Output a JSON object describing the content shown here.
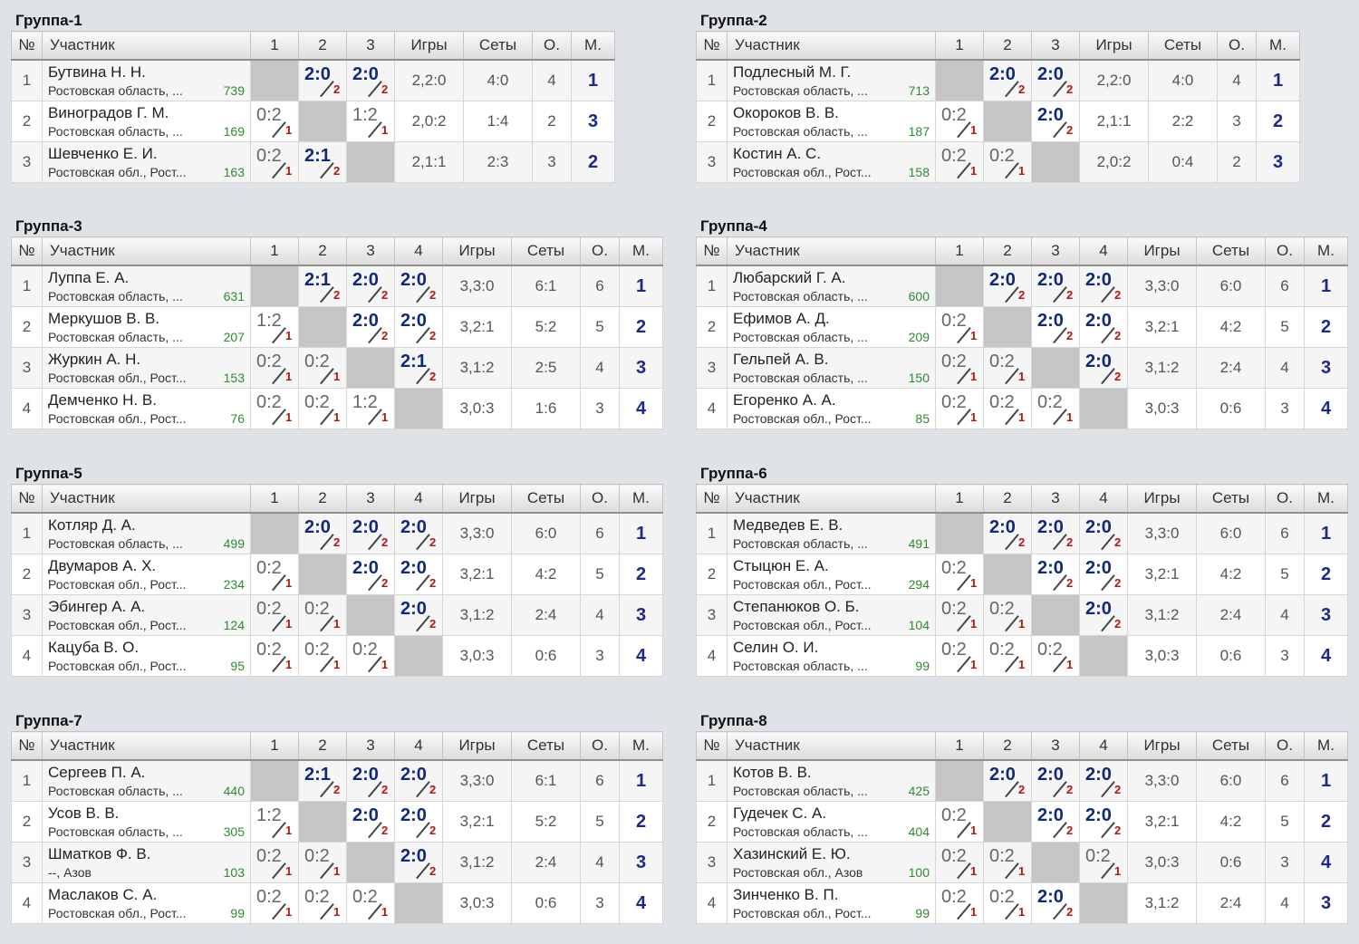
{
  "headers": {
    "num": "№",
    "participant": "Участник",
    "games": "Игры",
    "sets": "Сеты",
    "points": "О.",
    "place": "М."
  },
  "groups": [
    {
      "title": "Группа-1",
      "cols": [
        "1",
        "2",
        "3"
      ],
      "rows": [
        {
          "num": "1",
          "name": "Бутвина Н. Н.",
          "region": "Ростовская область, ...",
          "rating": "739",
          "results": [
            null,
            {
              "score": "2:0",
              "pts": "2",
              "win": true
            },
            {
              "score": "2:0",
              "pts": "2",
              "win": true
            }
          ],
          "games": "2,2:0",
          "sets": "4:0",
          "points": "4",
          "place": "1"
        },
        {
          "num": "2",
          "name": "Виноградов Г. М.",
          "region": "Ростовская область, ...",
          "rating": "169",
          "results": [
            {
              "score": "0:2",
              "pts": "1",
              "win": false
            },
            null,
            {
              "score": "1:2",
              "pts": "1",
              "win": false
            }
          ],
          "games": "2,0:2",
          "sets": "1:4",
          "points": "2",
          "place": "3"
        },
        {
          "num": "3",
          "name": "Шевченко Е. И.",
          "region": "Ростовская обл., Рост...",
          "rating": "163",
          "results": [
            {
              "score": "0:2",
              "pts": "1",
              "win": false
            },
            {
              "score": "2:1",
              "pts": "2",
              "win": true
            },
            null
          ],
          "games": "2,1:1",
          "sets": "2:3",
          "points": "3",
          "place": "2"
        }
      ]
    },
    {
      "title": "Группа-2",
      "cols": [
        "1",
        "2",
        "3"
      ],
      "rows": [
        {
          "num": "1",
          "name": "Подлесный М. Г.",
          "region": "Ростовская область, ...",
          "rating": "713",
          "results": [
            null,
            {
              "score": "2:0",
              "pts": "2",
              "win": true
            },
            {
              "score": "2:0",
              "pts": "2",
              "win": true
            }
          ],
          "games": "2,2:0",
          "sets": "4:0",
          "points": "4",
          "place": "1"
        },
        {
          "num": "2",
          "name": "Окороков В. В.",
          "region": "Ростовская область, ...",
          "rating": "187",
          "results": [
            {
              "score": "0:2",
              "pts": "1",
              "win": false
            },
            null,
            {
              "score": "2:0",
              "pts": "2",
              "win": true
            }
          ],
          "games": "2,1:1",
          "sets": "2:2",
          "points": "3",
          "place": "2"
        },
        {
          "num": "3",
          "name": "Костин А. С.",
          "region": "Ростовская обл., Рост...",
          "rating": "158",
          "results": [
            {
              "score": "0:2",
              "pts": "1",
              "win": false
            },
            {
              "score": "0:2",
              "pts": "1",
              "win": false
            },
            null
          ],
          "games": "2,0:2",
          "sets": "0:4",
          "points": "2",
          "place": "3"
        }
      ]
    },
    {
      "title": "Группа-3",
      "cols": [
        "1",
        "2",
        "3",
        "4"
      ],
      "rows": [
        {
          "num": "1",
          "name": "Луппа Е. А.",
          "region": "Ростовская область, ...",
          "rating": "631",
          "results": [
            null,
            {
              "score": "2:1",
              "pts": "2",
              "win": true
            },
            {
              "score": "2:0",
              "pts": "2",
              "win": true
            },
            {
              "score": "2:0",
              "pts": "2",
              "win": true
            }
          ],
          "games": "3,3:0",
          "sets": "6:1",
          "points": "6",
          "place": "1"
        },
        {
          "num": "2",
          "name": "Меркушов В. В.",
          "region": "Ростовская область, ...",
          "rating": "207",
          "results": [
            {
              "score": "1:2",
              "pts": "1",
              "win": false
            },
            null,
            {
              "score": "2:0",
              "pts": "2",
              "win": true
            },
            {
              "score": "2:0",
              "pts": "2",
              "win": true
            }
          ],
          "games": "3,2:1",
          "sets": "5:2",
          "points": "5",
          "place": "2"
        },
        {
          "num": "3",
          "name": "Журкин А. Н.",
          "region": "Ростовская обл., Рост...",
          "rating": "153",
          "results": [
            {
              "score": "0:2",
              "pts": "1",
              "win": false
            },
            {
              "score": "0:2",
              "pts": "1",
              "win": false
            },
            null,
            {
              "score": "2:1",
              "pts": "2",
              "win": true
            }
          ],
          "games": "3,1:2",
          "sets": "2:5",
          "points": "4",
          "place": "3"
        },
        {
          "num": "4",
          "name": "Демченко Н. В.",
          "region": "Ростовская обл., Рост...",
          "rating": "76",
          "results": [
            {
              "score": "0:2",
              "pts": "1",
              "win": false
            },
            {
              "score": "0:2",
              "pts": "1",
              "win": false
            },
            {
              "score": "1:2",
              "pts": "1",
              "win": false
            },
            null
          ],
          "games": "3,0:3",
          "sets": "1:6",
          "points": "3",
          "place": "4"
        }
      ]
    },
    {
      "title": "Группа-4",
      "cols": [
        "1",
        "2",
        "3",
        "4"
      ],
      "rows": [
        {
          "num": "1",
          "name": "Любарский Г. А.",
          "region": "Ростовская область, ...",
          "rating": "600",
          "results": [
            null,
            {
              "score": "2:0",
              "pts": "2",
              "win": true
            },
            {
              "score": "2:0",
              "pts": "2",
              "win": true
            },
            {
              "score": "2:0",
              "pts": "2",
              "win": true
            }
          ],
          "games": "3,3:0",
          "sets": "6:0",
          "points": "6",
          "place": "1"
        },
        {
          "num": "2",
          "name": "Ефимов А. Д.",
          "region": "Ростовская область, ...",
          "rating": "209",
          "results": [
            {
              "score": "0:2",
              "pts": "1",
              "win": false
            },
            null,
            {
              "score": "2:0",
              "pts": "2",
              "win": true
            },
            {
              "score": "2:0",
              "pts": "2",
              "win": true
            }
          ],
          "games": "3,2:1",
          "sets": "4:2",
          "points": "5",
          "place": "2"
        },
        {
          "num": "3",
          "name": "Гельпей А. В.",
          "region": "Ростовская область, ...",
          "rating": "150",
          "results": [
            {
              "score": "0:2",
              "pts": "1",
              "win": false
            },
            {
              "score": "0:2",
              "pts": "1",
              "win": false
            },
            null,
            {
              "score": "2:0",
              "pts": "2",
              "win": true
            }
          ],
          "games": "3,1:2",
          "sets": "2:4",
          "points": "4",
          "place": "3"
        },
        {
          "num": "4",
          "name": "Егоренко А. А.",
          "region": "Ростовская обл., Рост...",
          "rating": "85",
          "results": [
            {
              "score": "0:2",
              "pts": "1",
              "win": false
            },
            {
              "score": "0:2",
              "pts": "1",
              "win": false
            },
            {
              "score": "0:2",
              "pts": "1",
              "win": false
            },
            null
          ],
          "games": "3,0:3",
          "sets": "0:6",
          "points": "3",
          "place": "4"
        }
      ]
    },
    {
      "title": "Группа-5",
      "cols": [
        "1",
        "2",
        "3",
        "4"
      ],
      "rows": [
        {
          "num": "1",
          "name": "Котляр Д. А.",
          "region": "Ростовская область, ...",
          "rating": "499",
          "results": [
            null,
            {
              "score": "2:0",
              "pts": "2",
              "win": true
            },
            {
              "score": "2:0",
              "pts": "2",
              "win": true
            },
            {
              "score": "2:0",
              "pts": "2",
              "win": true
            }
          ],
          "games": "3,3:0",
          "sets": "6:0",
          "points": "6",
          "place": "1"
        },
        {
          "num": "2",
          "name": "Двумаров А. Х.",
          "region": "Ростовская обл., Рост...",
          "rating": "234",
          "results": [
            {
              "score": "0:2",
              "pts": "1",
              "win": false
            },
            null,
            {
              "score": "2:0",
              "pts": "2",
              "win": true
            },
            {
              "score": "2:0",
              "pts": "2",
              "win": true
            }
          ],
          "games": "3,2:1",
          "sets": "4:2",
          "points": "5",
          "place": "2"
        },
        {
          "num": "3",
          "name": "Эбингер А. А.",
          "region": "Ростовская обл., Рост...",
          "rating": "124",
          "results": [
            {
              "score": "0:2",
              "pts": "1",
              "win": false
            },
            {
              "score": "0:2",
              "pts": "1",
              "win": false
            },
            null,
            {
              "score": "2:0",
              "pts": "2",
              "win": true
            }
          ],
          "games": "3,1:2",
          "sets": "2:4",
          "points": "4",
          "place": "3"
        },
        {
          "num": "4",
          "name": "Кацуба В. О.",
          "region": "Ростовская обл., Рост...",
          "rating": "95",
          "results": [
            {
              "score": "0:2",
              "pts": "1",
              "win": false
            },
            {
              "score": "0:2",
              "pts": "1",
              "win": false
            },
            {
              "score": "0:2",
              "pts": "1",
              "win": false
            },
            null
          ],
          "games": "3,0:3",
          "sets": "0:6",
          "points": "3",
          "place": "4"
        }
      ]
    },
    {
      "title": "Группа-6",
      "cols": [
        "1",
        "2",
        "3",
        "4"
      ],
      "rows": [
        {
          "num": "1",
          "name": "Медведев Е. В.",
          "region": "Ростовская область, ...",
          "rating": "491",
          "results": [
            null,
            {
              "score": "2:0",
              "pts": "2",
              "win": true
            },
            {
              "score": "2:0",
              "pts": "2",
              "win": true
            },
            {
              "score": "2:0",
              "pts": "2",
              "win": true
            }
          ],
          "games": "3,3:0",
          "sets": "6:0",
          "points": "6",
          "place": "1"
        },
        {
          "num": "2",
          "name": "Стыцюн Е. А.",
          "region": "Ростовская обл., Рост...",
          "rating": "294",
          "results": [
            {
              "score": "0:2",
              "pts": "1",
              "win": false
            },
            null,
            {
              "score": "2:0",
              "pts": "2",
              "win": true
            },
            {
              "score": "2:0",
              "pts": "2",
              "win": true
            }
          ],
          "games": "3,2:1",
          "sets": "4:2",
          "points": "5",
          "place": "2"
        },
        {
          "num": "3",
          "name": "Степанюков О. Б.",
          "region": "Ростовская обл., Рост...",
          "rating": "104",
          "results": [
            {
              "score": "0:2",
              "pts": "1",
              "win": false
            },
            {
              "score": "0:2",
              "pts": "1",
              "win": false
            },
            null,
            {
              "score": "2:0",
              "pts": "2",
              "win": true
            }
          ],
          "games": "3,1:2",
          "sets": "2:4",
          "points": "4",
          "place": "3"
        },
        {
          "num": "4",
          "name": "Селин О. И.",
          "region": "Ростовская область, ...",
          "rating": "99",
          "results": [
            {
              "score": "0:2",
              "pts": "1",
              "win": false
            },
            {
              "score": "0:2",
              "pts": "1",
              "win": false
            },
            {
              "score": "0:2",
              "pts": "1",
              "win": false
            },
            null
          ],
          "games": "3,0:3",
          "sets": "0:6",
          "points": "3",
          "place": "4"
        }
      ]
    },
    {
      "title": "Группа-7",
      "cols": [
        "1",
        "2",
        "3",
        "4"
      ],
      "rows": [
        {
          "num": "1",
          "name": "Сергеев П. А.",
          "region": "Ростовская область, ...",
          "rating": "440",
          "results": [
            null,
            {
              "score": "2:1",
              "pts": "2",
              "win": true
            },
            {
              "score": "2:0",
              "pts": "2",
              "win": true
            },
            {
              "score": "2:0",
              "pts": "2",
              "win": true
            }
          ],
          "games": "3,3:0",
          "sets": "6:1",
          "points": "6",
          "place": "1"
        },
        {
          "num": "2",
          "name": "Усов В. В.",
          "region": "Ростовская область, ...",
          "rating": "305",
          "results": [
            {
              "score": "1:2",
              "pts": "1",
              "win": false
            },
            null,
            {
              "score": "2:0",
              "pts": "2",
              "win": true
            },
            {
              "score": "2:0",
              "pts": "2",
              "win": true
            }
          ],
          "games": "3,2:1",
          "sets": "5:2",
          "points": "5",
          "place": "2"
        },
        {
          "num": "3",
          "name": "Шматков Ф. В.",
          "region": "--, Азов",
          "rating": "103",
          "results": [
            {
              "score": "0:2",
              "pts": "1",
              "win": false
            },
            {
              "score": "0:2",
              "pts": "1",
              "win": false
            },
            null,
            {
              "score": "2:0",
              "pts": "2",
              "win": true
            }
          ],
          "games": "3,1:2",
          "sets": "2:4",
          "points": "4",
          "place": "3"
        },
        {
          "num": "4",
          "name": "Маслаков С. А.",
          "region": "Ростовская обл., Рост...",
          "rating": "99",
          "results": [
            {
              "score": "0:2",
              "pts": "1",
              "win": false
            },
            {
              "score": "0:2",
              "pts": "1",
              "win": false
            },
            {
              "score": "0:2",
              "pts": "1",
              "win": false
            },
            null
          ],
          "games": "3,0:3",
          "sets": "0:6",
          "points": "3",
          "place": "4"
        }
      ]
    },
    {
      "title": "Группа-8",
      "cols": [
        "1",
        "2",
        "3",
        "4"
      ],
      "rows": [
        {
          "num": "1",
          "name": "Котов В. В.",
          "region": "Ростовская область, ...",
          "rating": "425",
          "results": [
            null,
            {
              "score": "2:0",
              "pts": "2",
              "win": true
            },
            {
              "score": "2:0",
              "pts": "2",
              "win": true
            },
            {
              "score": "2:0",
              "pts": "2",
              "win": true
            }
          ],
          "games": "3,3:0",
          "sets": "6:0",
          "points": "6",
          "place": "1"
        },
        {
          "num": "2",
          "name": "Гудечек С. А.",
          "region": "Ростовская область, ...",
          "rating": "404",
          "results": [
            {
              "score": "0:2",
              "pts": "1",
              "win": false
            },
            null,
            {
              "score": "2:0",
              "pts": "2",
              "win": true
            },
            {
              "score": "2:0",
              "pts": "2",
              "win": true
            }
          ],
          "games": "3,2:1",
          "sets": "4:2",
          "points": "5",
          "place": "2"
        },
        {
          "num": "3",
          "name": "Хазинский Е. Ю.",
          "region": "Ростовская обл., Азов",
          "rating": "100",
          "results": [
            {
              "score": "0:2",
              "pts": "1",
              "win": false
            },
            {
              "score": "0:2",
              "pts": "1",
              "win": false
            },
            null,
            {
              "score": "0:2",
              "pts": "1",
              "win": false
            }
          ],
          "games": "3,0:3",
          "sets": "0:6",
          "points": "3",
          "place": "4"
        },
        {
          "num": "4",
          "name": "Зинченко В. П.",
          "region": "Ростовская обл., Рост...",
          "rating": "99",
          "results": [
            {
              "score": "0:2",
              "pts": "1",
              "win": false
            },
            {
              "score": "0:2",
              "pts": "1",
              "win": false
            },
            {
              "score": "2:0",
              "pts": "2",
              "win": true
            },
            null
          ],
          "games": "3,1:2",
          "sets": "2:4",
          "points": "4",
          "place": "3"
        }
      ]
    }
  ]
}
